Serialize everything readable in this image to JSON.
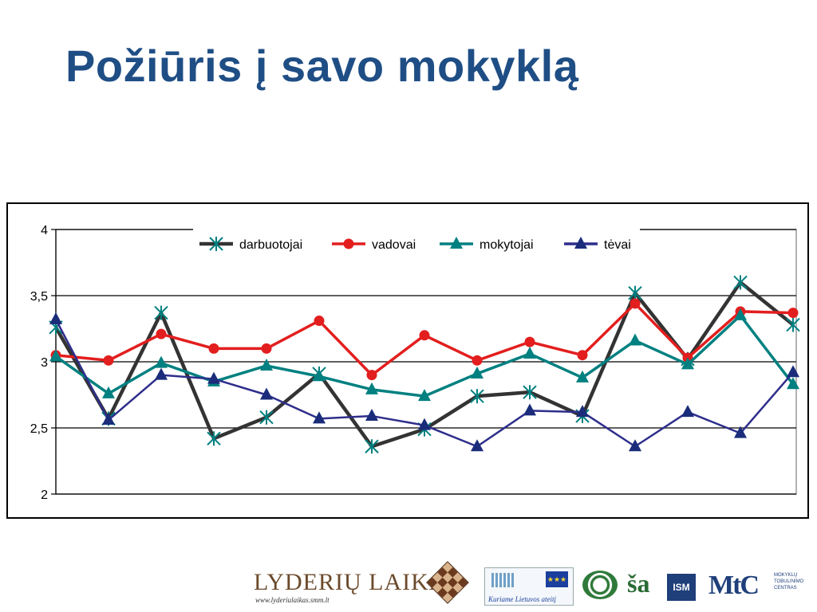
{
  "title": "Požiūris į savo mokyklą",
  "chart_data": {
    "type": "line",
    "y_ticks": [
      "4",
      "3,5",
      "3",
      "2,5",
      "2"
    ],
    "ylim": [
      2,
      4
    ],
    "n_points": 15,
    "grid": "horizontal major gridlines",
    "legend_position": "top, inside plot",
    "series": [
      {
        "name": "darbuotojai",
        "color": "#333333",
        "marker": "asterisk",
        "marker_color": "#008080",
        "values": [
          3.26,
          2.57,
          3.37,
          2.42,
          2.58,
          2.91,
          2.36,
          2.49,
          2.74,
          2.77,
          2.59,
          3.52,
          3.02,
          3.6,
          3.28
        ]
      },
      {
        "name": "vadovai",
        "color": "#e31e1e",
        "marker": "circle",
        "marker_color": "#e31e1e",
        "values": [
          3.05,
          3.01,
          3.21,
          3.1,
          3.1,
          3.31,
          2.9,
          3.2,
          3.01,
          3.15,
          3.05,
          3.44,
          3.03,
          3.38,
          3.37
        ]
      },
      {
        "name": "mokytojai",
        "color": "#008080",
        "marker": "triangle",
        "marker_color": "#008080",
        "values": [
          3.04,
          2.76,
          2.99,
          2.85,
          2.97,
          2.89,
          2.79,
          2.74,
          2.91,
          3.06,
          2.88,
          3.16,
          2.98,
          3.35,
          2.83
        ]
      },
      {
        "name": "tėvai",
        "color": "#2e2e8c",
        "marker": "triangle",
        "marker_color": "#1a2c7a",
        "values": [
          3.32,
          2.56,
          2.9,
          2.87,
          2.75,
          2.57,
          2.59,
          2.52,
          2.36,
          2.63,
          2.62,
          2.36,
          2.62,
          2.46,
          2.92
        ]
      }
    ]
  },
  "footer": {
    "lyderiu_name": "LYDERIŲ LAIKAS",
    "lyderiu_url": "www.lyderiulaikas.smm.lt",
    "eu_slogan": "Kuriame Lietuvos ateitį",
    "ism_label": "ISM",
    "mtc_label": "MtC",
    "mtc_small": "MOKYKLŲ TOBULINIMO CENTRAS"
  }
}
